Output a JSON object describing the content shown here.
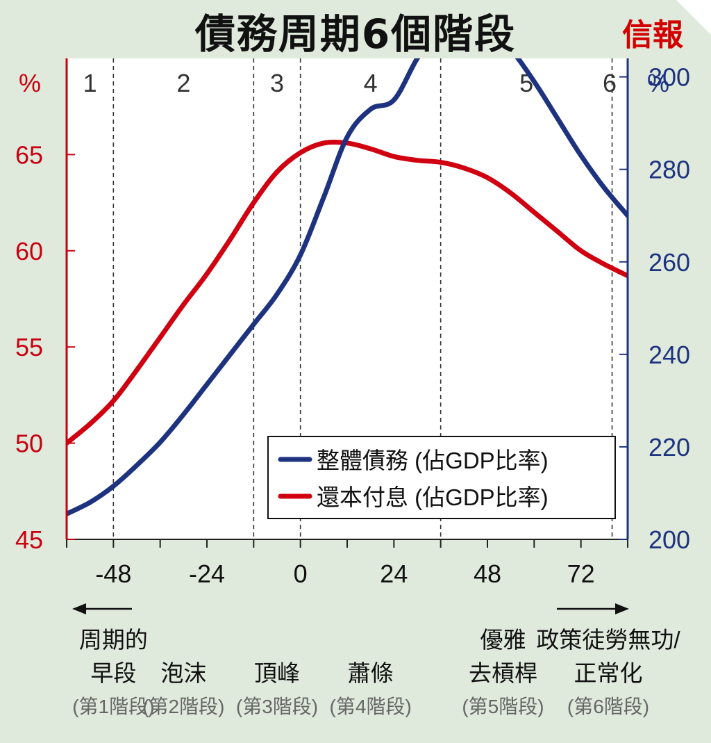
{
  "title": "債務周期6個階段",
  "brand": "信報",
  "chart_data": {
    "type": "line",
    "title": "債務周期6個階段",
    "x_ticks": [
      -48,
      -24,
      0,
      24,
      48,
      72
    ],
    "xlim": [
      -60,
      84
    ],
    "y_left": {
      "unit": "%",
      "ticks": [
        45,
        50,
        55,
        60,
        65
      ],
      "range": [
        45,
        70
      ],
      "color": "#c8000f"
    },
    "y_right": {
      "unit": "%",
      "ticks": [
        200,
        220,
        240,
        260,
        280,
        300
      ],
      "range": [
        200,
        304
      ],
      "color": "#1e3380"
    },
    "phase_boundaries": [
      -48,
      -12,
      0,
      36,
      80
    ],
    "phase_numbers": [
      {
        "label": "1",
        "x": -54
      },
      {
        "label": "2",
        "x": -30
      },
      {
        "label": "3",
        "x": -6
      },
      {
        "label": "4",
        "x": 18
      },
      {
        "label": "5",
        "x": 58
      },
      {
        "label": "6",
        "x": 84
      }
    ],
    "series": [
      {
        "name": "整體債務 (佔GDP比率)",
        "axis": "right",
        "color": "#1e3380",
        "x": [
          -60,
          -54,
          -48,
          -42,
          -36,
          -30,
          -24,
          -18,
          -12,
          -6,
          0,
          6,
          12,
          18,
          24,
          30,
          36,
          42,
          48,
          54,
          60,
          66,
          72,
          78,
          84
        ],
        "y": [
          205.5,
          208,
          211.5,
          216,
          221,
          227,
          233.5,
          240,
          246.5,
          253,
          261.5,
          274,
          287,
          293,
          295,
          304,
          311,
          312,
          311,
          306,
          299,
          291,
          283,
          276,
          270
        ]
      },
      {
        "name": "還本付息 (佔GDP比率)",
        "axis": "left",
        "color": "#d00010",
        "x": [
          -60,
          -54,
          -48,
          -42,
          -36,
          -30,
          -24,
          -18,
          -12,
          -6,
          0,
          6,
          12,
          18,
          24,
          30,
          36,
          42,
          48,
          54,
          60,
          66,
          72,
          78,
          84
        ],
        "y": [
          50,
          51,
          52.2,
          53.8,
          55.5,
          57.2,
          58.8,
          60.6,
          62.5,
          64.1,
          65.1,
          65.6,
          65.6,
          65.3,
          64.9,
          64.7,
          64.6,
          64.3,
          63.8,
          63,
          62,
          61,
          60,
          59.3,
          58.7
        ]
      }
    ],
    "legend_position": "bottom-right",
    "stage_labels": [
      {
        "x": -48,
        "name_lines": [
          "周期的",
          "早段"
        ],
        "stage": "(第1階段)"
      },
      {
        "x": -30,
        "name_lines": [
          "泡沫"
        ],
        "stage": "(第2階段)"
      },
      {
        "x": -6,
        "name_lines": [
          "頂峰"
        ],
        "stage": "(第3階段)"
      },
      {
        "x": 18,
        "name_lines": [
          "蕭條"
        ],
        "stage": "(第4階段)"
      },
      {
        "x": 52,
        "name_lines": [
          "優雅",
          "去槓桿"
        ],
        "stage": "(第5階段)"
      },
      {
        "x": 84,
        "name_lines": [
          "政策徒勞無功/",
          "正常化"
        ],
        "stage": "(第6階段)"
      }
    ],
    "grid": false
  }
}
